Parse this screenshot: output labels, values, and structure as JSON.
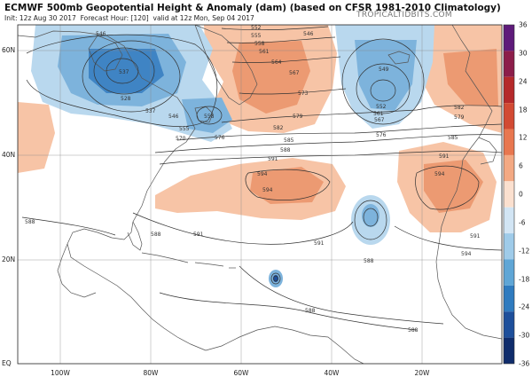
{
  "header": {
    "title": "ECMWF 500mb Geopotential Height & Anomaly (dam) (based on CFSR 1981-2010 Climatology)",
    "init": "Init: 12z Aug 30 2017",
    "forecast_hour": "Forecast Hour: [120]",
    "valid": "valid at 12z Mon, Sep 04 2017",
    "brand": "TROPICALTIDBITS.COM"
  },
  "axes": {
    "lat_labels": [
      "60N",
      "40N",
      "20N",
      "EQ"
    ],
    "lon_labels": [
      "100W",
      "80W",
      "60W",
      "40W",
      "20W"
    ]
  },
  "colorbar": {
    "labels": [
      "36",
      "30",
      "24",
      "18",
      "12",
      "6",
      "0",
      "-6",
      "-12",
      "-18",
      "-24",
      "-30",
      "-36"
    ],
    "colors": [
      "#5e1a7a",
      "#8c1d4a",
      "#b5292a",
      "#d24a33",
      "#e8774f",
      "#f3a983",
      "#fbe0cf",
      "#d2e5f4",
      "#9fcbe9",
      "#5fa6d6",
      "#2f7bbf",
      "#1d4f9b",
      "#0f2c6b"
    ]
  },
  "contour_labels": {
    "blue_low_west": [
      "546",
      "537",
      "528",
      "537",
      "546",
      "555",
      "561",
      "570",
      "576",
      "558"
    ],
    "east_low": [
      "549",
      "552",
      "555",
      "558",
      "561",
      "564",
      "567",
      "570",
      "573",
      "576",
      "579",
      "582",
      "585",
      "588",
      "591",
      "594"
    ],
    "atlantic": [
      "552",
      "555",
      "558",
      "561",
      "564",
      "567",
      "573",
      "579",
      "582",
      "585",
      "588",
      "591",
      "594"
    ],
    "misc": [
      "546",
      "543",
      "588",
      "588",
      "588",
      "591",
      "591",
      "594",
      "594",
      "588",
      "588"
    ]
  },
  "anomaly_colors": {
    "positive_light": "#f7c4a6",
    "positive_mid": "#ec9a72",
    "negative_light": "#b9d8ee",
    "negative_mid": "#7db3dc",
    "negative_dark": "#3f84c4",
    "land_line": "#555555",
    "contour_line": "#333333"
  }
}
